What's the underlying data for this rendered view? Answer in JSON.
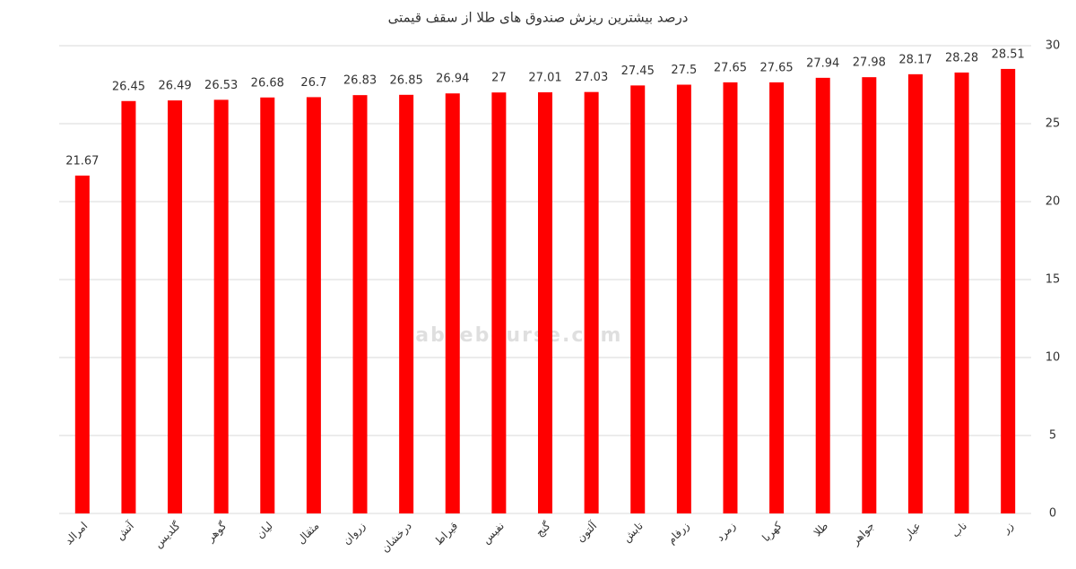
{
  "chart_data": {
    "type": "bar",
    "title": "درصد بیشترین ریزش صندوق های طلا از سقف قیمتی",
    "watermark": "nabzebourse.com",
    "categories": [
      "امرالد",
      "آتش",
      "گلدیس",
      "گوهر",
      "لیان",
      "مثقال",
      "زروان",
      "درخشان",
      "قیراط",
      "نفیس",
      "گنج",
      "آلتون",
      "تابش",
      "زرفام",
      "زمرد",
      "کهربا",
      "طلا",
      "جواهر",
      "عیار",
      "ناب",
      "زر"
    ],
    "values": [
      21.67,
      26.45,
      26.49,
      26.53,
      26.68,
      26.7,
      26.83,
      26.85,
      26.94,
      27,
      27.01,
      27.03,
      27.45,
      27.5,
      27.65,
      27.65,
      27.94,
      27.98,
      28.17,
      28.28,
      28.51
    ],
    "color": "#ff0000",
    "ylim": [
      0,
      30
    ],
    "yticks": [
      0,
      5,
      10,
      15,
      20,
      25,
      30
    ],
    "grid": true,
    "y_axis_side": "right"
  }
}
